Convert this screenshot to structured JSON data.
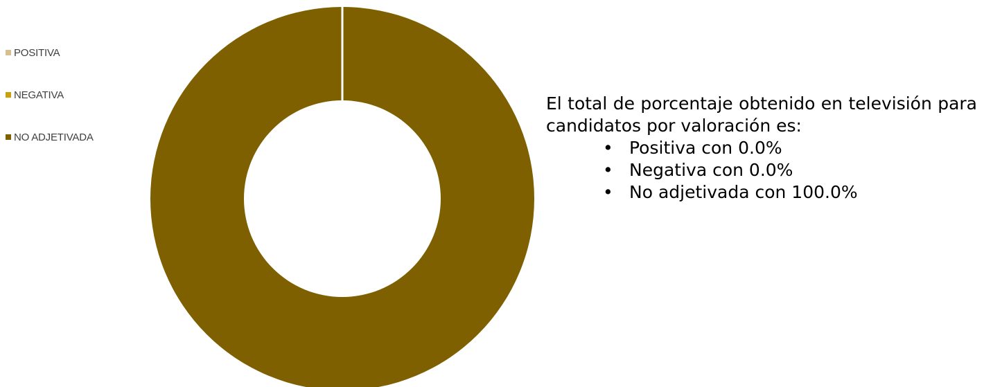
{
  "chart_data": {
    "type": "pie",
    "donut": true,
    "categories": [
      "POSITIVA",
      "NEGATIVA",
      "NO ADJETIVADA"
    ],
    "values": [
      0.0,
      0.0,
      100.0
    ],
    "colors": [
      "#d6c08f",
      "#c9a10a",
      "#7f6000"
    ],
    "legend_position": "left",
    "title": "",
    "xlabel": "",
    "ylabel": ""
  },
  "description": {
    "intro": "El total de porcentaje obtenido en televisión para candidatos por valoración es:",
    "items": [
      "Positiva con 0.0%",
      "Negativa con 0.0%",
      "No adjetivada con 100.0%"
    ],
    "bullet": "•"
  }
}
